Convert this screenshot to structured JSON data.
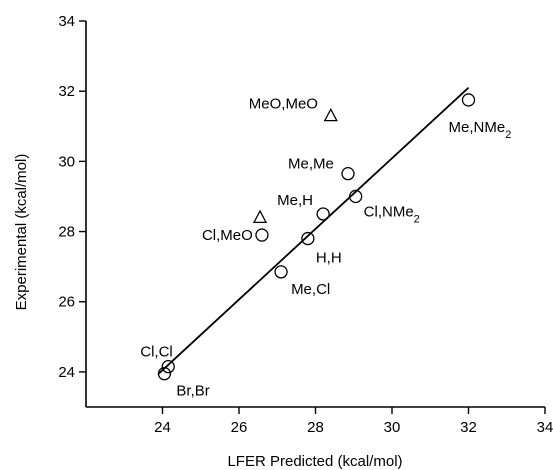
{
  "chart_data": {
    "type": "scatter",
    "xlabel": "LFER Predicted (kcal/mol)",
    "ylabel": "Experimental (kcal/mol)",
    "xlim": [
      22,
      34
    ],
    "ylim": [
      23,
      34
    ],
    "xticks": [
      "24",
      "26",
      "28",
      "30",
      "32",
      "34"
    ],
    "yticks": [
      "24",
      "26",
      "28",
      "30",
      "32",
      "34"
    ],
    "grid": false,
    "series": [
      {
        "marker": "circle",
        "points": [
          {
            "label": "Br,Br",
            "x": 24.05,
            "y": 23.95
          },
          {
            "label": "Cl,Cl",
            "x": 24.15,
            "y": 24.15
          },
          {
            "label": "Me,Cl",
            "x": 27.1,
            "y": 26.85
          },
          {
            "label": "Cl,MeO",
            "x": 26.6,
            "y": 27.9
          },
          {
            "label": "H,H",
            "x": 27.8,
            "y": 27.8
          },
          {
            "label": "Me,H",
            "x": 28.2,
            "y": 28.5
          },
          {
            "label": "Cl,NMe2",
            "x": 29.05,
            "y": 29.0
          },
          {
            "label": "Me,Me",
            "x": 28.85,
            "y": 29.65
          },
          {
            "label": "Me,NMe2",
            "x": 32.0,
            "y": 31.75
          }
        ]
      },
      {
        "marker": "triangle",
        "points": [
          {
            "label": "MeO,MeO",
            "x": 28.4,
            "y": 31.3
          },
          {
            "label": "",
            "x": 26.55,
            "y": 28.4
          }
        ]
      }
    ],
    "fit_line": {
      "x": [
        23.9,
        32.0
      ],
      "y": [
        23.95,
        32.1
      ]
    }
  }
}
